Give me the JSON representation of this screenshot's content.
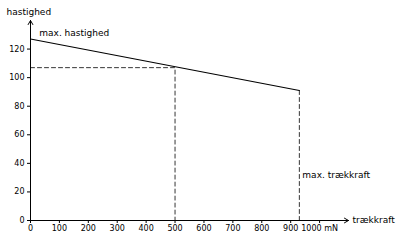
{
  "chart_data": {
    "type": "line",
    "x_label": "trækkraft",
    "y_label": "hastighed",
    "xlim": [
      0,
      1100
    ],
    "ylim": [
      0,
      140
    ],
    "xticks": [
      0,
      100,
      200,
      300,
      400,
      500,
      600,
      700,
      800,
      900,
      {
        "value": 1000,
        "label": "1000 mN"
      }
    ],
    "yticks": [
      0,
      20,
      40,
      60,
      80,
      100,
      120
    ],
    "grid": false,
    "series": [
      {
        "x": [
          0,
          930
        ],
        "values": [
          127,
          91
        ],
        "color": "#000000",
        "line_style": "solid"
      },
      {
        "x": [
          0,
          500,
          500
        ],
        "values": [
          107,
          107,
          0
        ],
        "color": "#000000",
        "line_style": "dashed"
      },
      {
        "x": [
          930,
          930
        ],
        "values": [
          91,
          0
        ],
        "color": "#000000",
        "line_style": "dashed"
      }
    ],
    "annotations": [
      {
        "text": "max. hastighed",
        "x": 20,
        "y": 129
      },
      {
        "text": "max. trækkraft",
        "x": 930,
        "y": 30
      }
    ]
  }
}
